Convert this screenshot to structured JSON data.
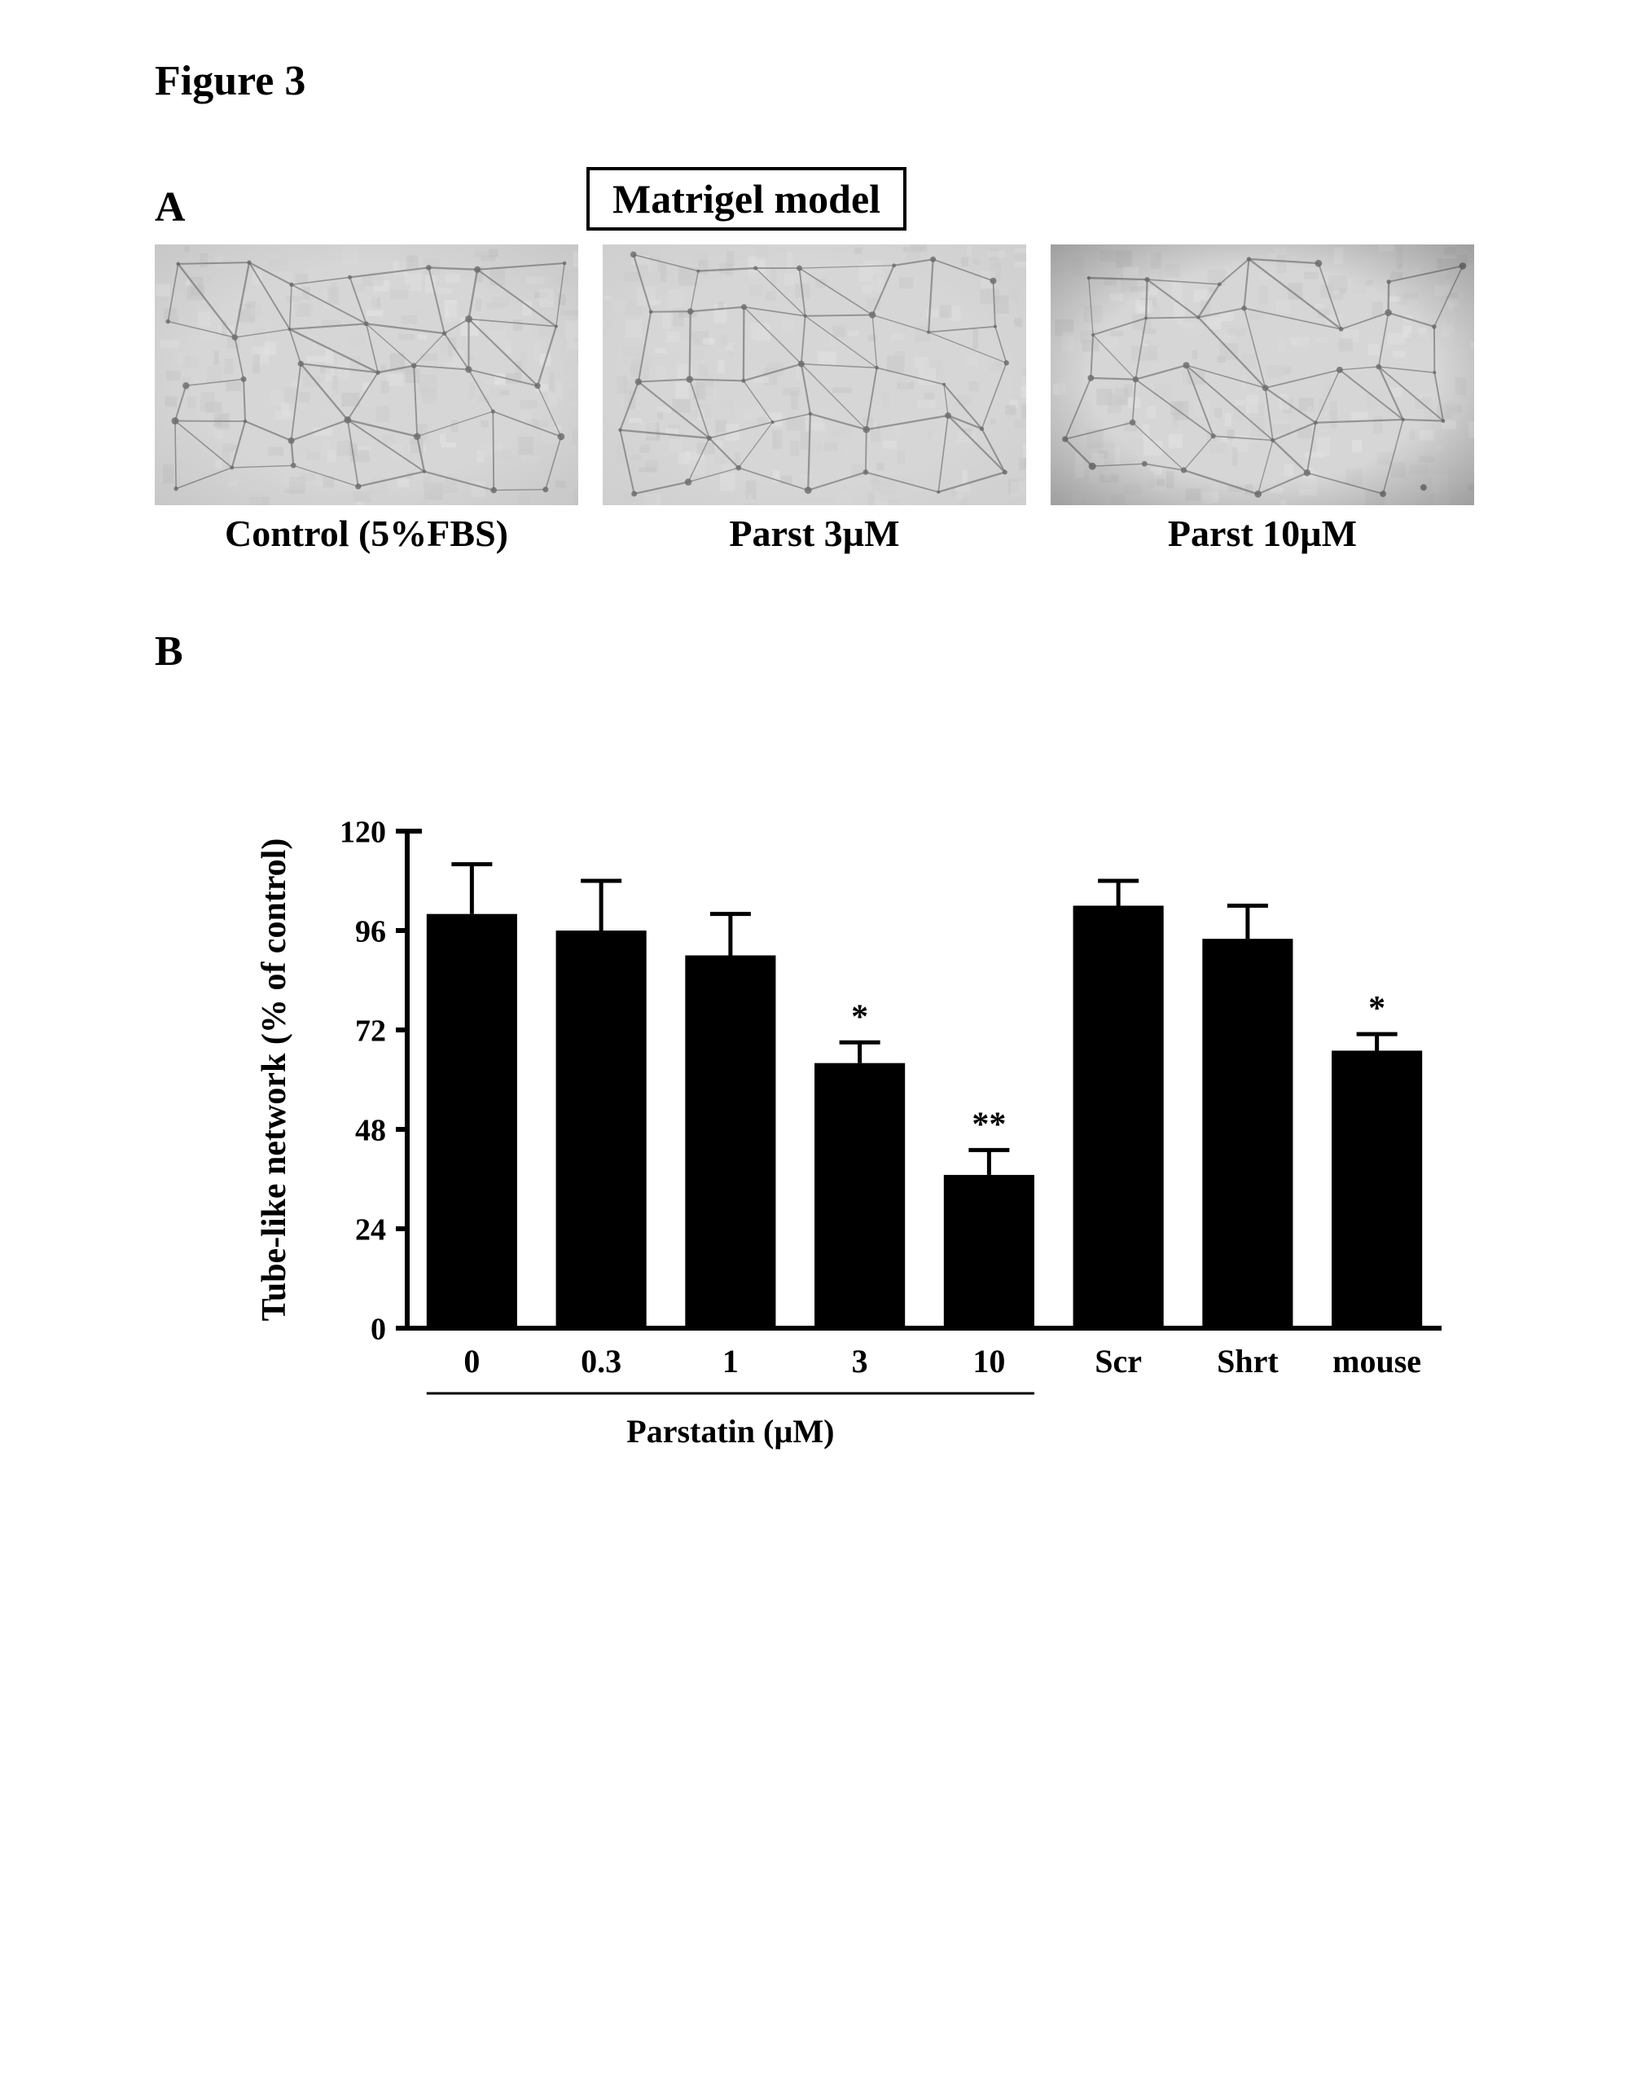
{
  "figure_label": "Figure 3",
  "panelA": {
    "label": "A",
    "box_label": "Matrigel model",
    "images": [
      {
        "caption": "Control (5%FBS)",
        "vignette": 0.08
      },
      {
        "caption": "Parst 3µM",
        "vignette": 0.04
      },
      {
        "caption": "Parst 10µM",
        "vignette": 0.3
      }
    ],
    "caption_fontsize": 46,
    "caption_fontweight": "bold"
  },
  "panelB": {
    "label": "B",
    "chart": {
      "type": "bar",
      "ylabel": "Tube-like network (% of control)",
      "ylabel_fontsize": 42,
      "ylabel_fontweight": "bold",
      "label_fontsize": 40,
      "label_fontweight": "bold",
      "tick_fontsize": 38,
      "ylim": [
        0,
        120
      ],
      "yticks": [
        0,
        24,
        48,
        72,
        96,
        120
      ],
      "categories": [
        "0",
        "0.3",
        "1",
        "3",
        "10",
        "Scr",
        "Shrt",
        "mouse"
      ],
      "values": [
        100,
        96,
        90,
        64,
        37,
        102,
        94,
        67
      ],
      "errors": [
        12,
        12,
        10,
        5,
        6,
        6,
        8,
        4
      ],
      "signif": [
        "",
        "",
        "",
        "*",
        "**",
        "",
        "",
        "*"
      ],
      "bar_color": "#000000",
      "error_color": "#000000",
      "axis_color": "#000000",
      "background_color": "#ffffff",
      "bar_width": 0.7,
      "group_underline_end_index": 5,
      "group_label": "Parstatin (µM)",
      "signif_fontsize": 42,
      "axis_line_width": 6,
      "error_line_width": 5,
      "tick_len": 14
    }
  }
}
